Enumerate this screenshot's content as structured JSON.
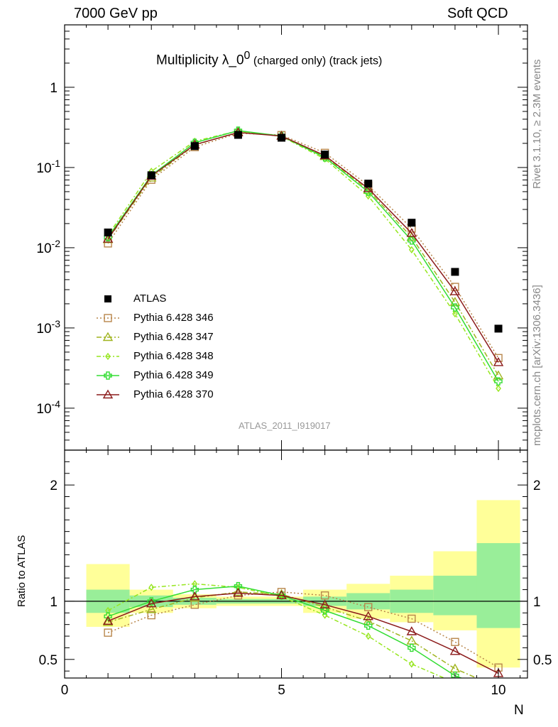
{
  "header": {
    "left": "7000 GeV pp",
    "right": "Soft QCD"
  },
  "side_labels": {
    "top": "Rivet 3.1.10, ≥ 2.3M events",
    "bottom": "mcplots.cern.ch [arXiv:1306.3436]"
  },
  "plot_title": {
    "main": "Multiplicity λ_0",
    "sup": "0",
    "suffix": " (charged only) (track jets)"
  },
  "watermark": "ATLAS_2011_I919017",
  "xlabel": "N",
  "ratio_ylabel": "Ratio to ATLAS",
  "colors": {
    "data": "#000000",
    "band_inner": "#99ee99",
    "band_outer": "#ffff99",
    "s346": "#b8864b",
    "s347": "#a0b41e",
    "s348": "#96e61e",
    "s349": "#33dd33",
    "s370": "#8b1a1a"
  },
  "chart_data": {
    "type": "scatter",
    "xlim": [
      0,
      10.67
    ],
    "main_ylim_log": [
      3e-05,
      6
    ],
    "ratio_ylim": [
      0.34,
      2.3
    ],
    "x": [
      1,
      2,
      3,
      4,
      5,
      6,
      7,
      8,
      9,
      10
    ],
    "x_ticks": [
      "0",
      "5",
      "10"
    ],
    "main_y_ticks": [
      "10^-4",
      "10^-3",
      "10^-2",
      "10^-1",
      "1"
    ],
    "ratio_y_ticks": [
      "0.5",
      "1",
      "2"
    ],
    "data": {
      "name": "ATLAS",
      "values": [
        0.0155,
        0.08,
        0.185,
        0.255,
        0.235,
        0.145,
        0.063,
        0.0205,
        0.005,
        0.00098
      ],
      "band_inner": [
        [
          0.9,
          1.1
        ],
        [
          0.95,
          1.05
        ],
        [
          0.97,
          1.03
        ],
        [
          0.98,
          1.02
        ],
        [
          0.98,
          1.02
        ],
        [
          0.96,
          1.04
        ],
        [
          0.93,
          1.07
        ],
        [
          0.9,
          1.1
        ],
        [
          0.88,
          1.22
        ],
        [
          0.77,
          1.5
        ]
      ],
      "band_outer": [
        [
          0.78,
          1.32
        ],
        [
          0.9,
          1.1
        ],
        [
          0.94,
          1.06
        ],
        [
          0.96,
          1.04
        ],
        [
          0.96,
          1.04
        ],
        [
          0.9,
          1.1
        ],
        [
          0.85,
          1.15
        ],
        [
          0.82,
          1.22
        ],
        [
          0.75,
          1.43
        ],
        [
          0.43,
          1.87
        ]
      ]
    },
    "series": [
      {
        "name": "Pythia 6.428 346",
        "key": "s346",
        "marker": "square",
        "dash": "2,3",
        "ratio": [
          0.73,
          0.88,
          0.97,
          1.05,
          1.08,
          1.05,
          0.95,
          0.85,
          0.65,
          0.43
        ]
      },
      {
        "name": "Pythia 6.428 347",
        "key": "s347",
        "marker": "triangle",
        "dash": "7,3,2,3",
        "ratio": [
          0.82,
          0.93,
          1.03,
          1.08,
          1.06,
          0.95,
          0.83,
          0.66,
          0.42,
          0.26
        ]
      },
      {
        "name": "Pythia 6.428 348",
        "key": "s348",
        "marker": "diamond",
        "dash": "6,3,2,3",
        "ratio": [
          0.92,
          1.12,
          1.15,
          1.12,
          1.04,
          0.88,
          0.7,
          0.46,
          0.3,
          0.18
        ]
      },
      {
        "name": "Pythia 6.428 349",
        "key": "s349",
        "marker": "cross",
        "dash": "",
        "ratio": [
          0.87,
          1.0,
          1.1,
          1.13,
          1.05,
          0.92,
          0.79,
          0.6,
          0.36,
          0.22
        ]
      },
      {
        "name": "Pythia 6.428 370",
        "key": "s370",
        "marker": "triangle",
        "dash": "",
        "ratio": [
          0.83,
          0.98,
          1.04,
          1.07,
          1.05,
          0.97,
          0.87,
          0.74,
          0.57,
          0.38
        ]
      }
    ]
  }
}
